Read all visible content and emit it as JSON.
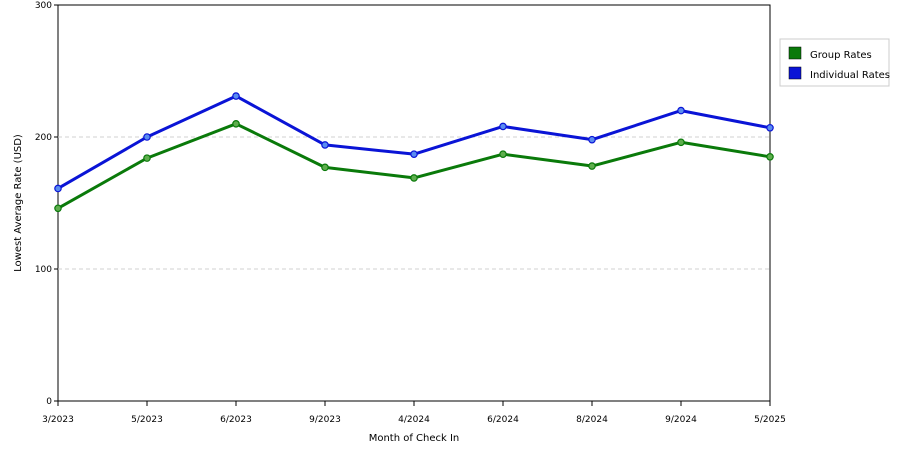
{
  "chart_data": {
    "type": "line",
    "categories": [
      "3/2023",
      "5/2023",
      "6/2023",
      "9/2023",
      "4/2024",
      "6/2024",
      "8/2024",
      "9/2024",
      "5/2025"
    ],
    "series": [
      {
        "name": "Group Rates",
        "color": "#0a7a0a",
        "values": [
          146,
          184,
          210,
          177,
          169,
          187,
          178,
          196,
          185
        ]
      },
      {
        "name": "Individual Rates",
        "color": "#0a14d6",
        "values": [
          161,
          200,
          231,
          194,
          187,
          208,
          198,
          220,
          207
        ]
      }
    ],
    "title": "",
    "xlabel": "Month of Check In",
    "ylabel": "Lowest Average Rate (USD)",
    "ylim": [
      0,
      300
    ],
    "yticks": [
      0,
      100,
      200,
      300
    ],
    "grid": true,
    "legend_position": "top-right"
  }
}
